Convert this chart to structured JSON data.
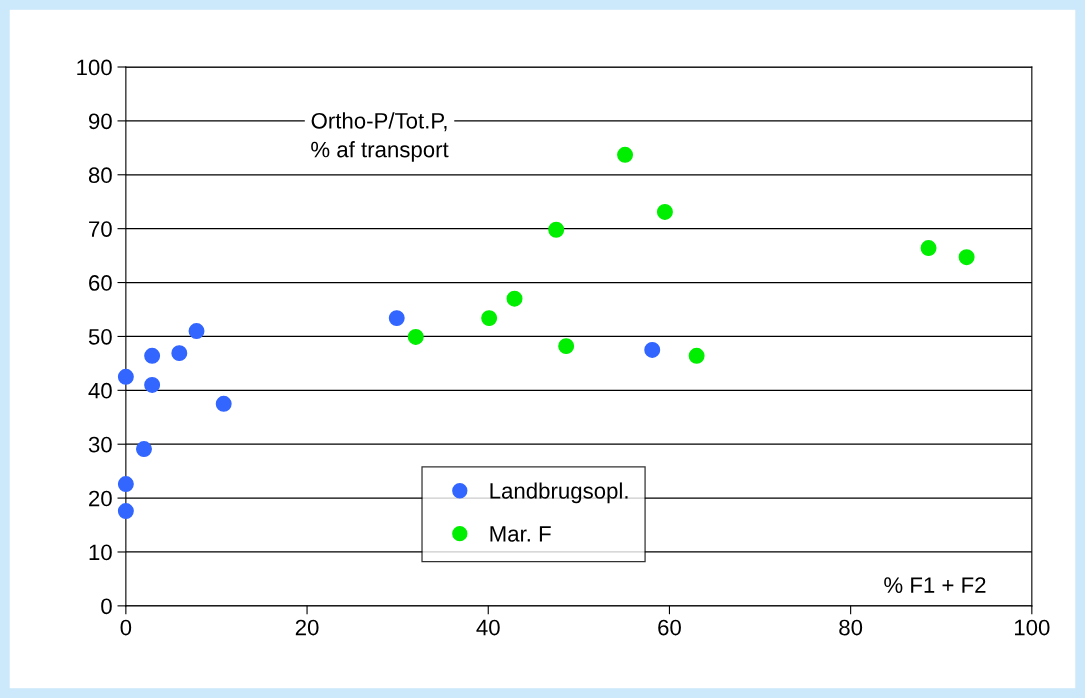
{
  "chart_data": {
    "type": "scatter",
    "xlabel": "% F1 + F2",
    "ylabel": "Ortho-P/Tot.P,\n% af transport",
    "xlim": [
      0,
      100
    ],
    "ylim": [
      0,
      100
    ],
    "xticks": [
      0,
      20,
      40,
      60,
      80,
      100
    ],
    "yticks": [
      0,
      10,
      20,
      30,
      40,
      50,
      60,
      70,
      80,
      90,
      100
    ],
    "grid": "y",
    "legend": "bottom",
    "marker": "circle",
    "series": [
      {
        "name": "Landbrugsopl.",
        "color": "#3366ff",
        "x": [
          0,
          0,
          0,
          2,
          2.9,
          2.9,
          5.9,
          7.8,
          10.8,
          29.9,
          58.1
        ],
        "values": [
          42.5,
          22.6,
          17.6,
          29.1,
          46.4,
          41.0,
          46.9,
          51.0,
          37.5,
          53.4,
          47.5
        ]
      },
      {
        "name": "Mar. F",
        "color": "#00ee00",
        "x": [
          32.0,
          40.1,
          42.9,
          47.5,
          48.6,
          55.1,
          59.5,
          63.0,
          88.6,
          92.8
        ],
        "values": [
          49.9,
          53.4,
          57.0,
          69.8,
          48.2,
          83.7,
          73.1,
          46.4,
          66.4,
          64.7
        ]
      }
    ]
  }
}
